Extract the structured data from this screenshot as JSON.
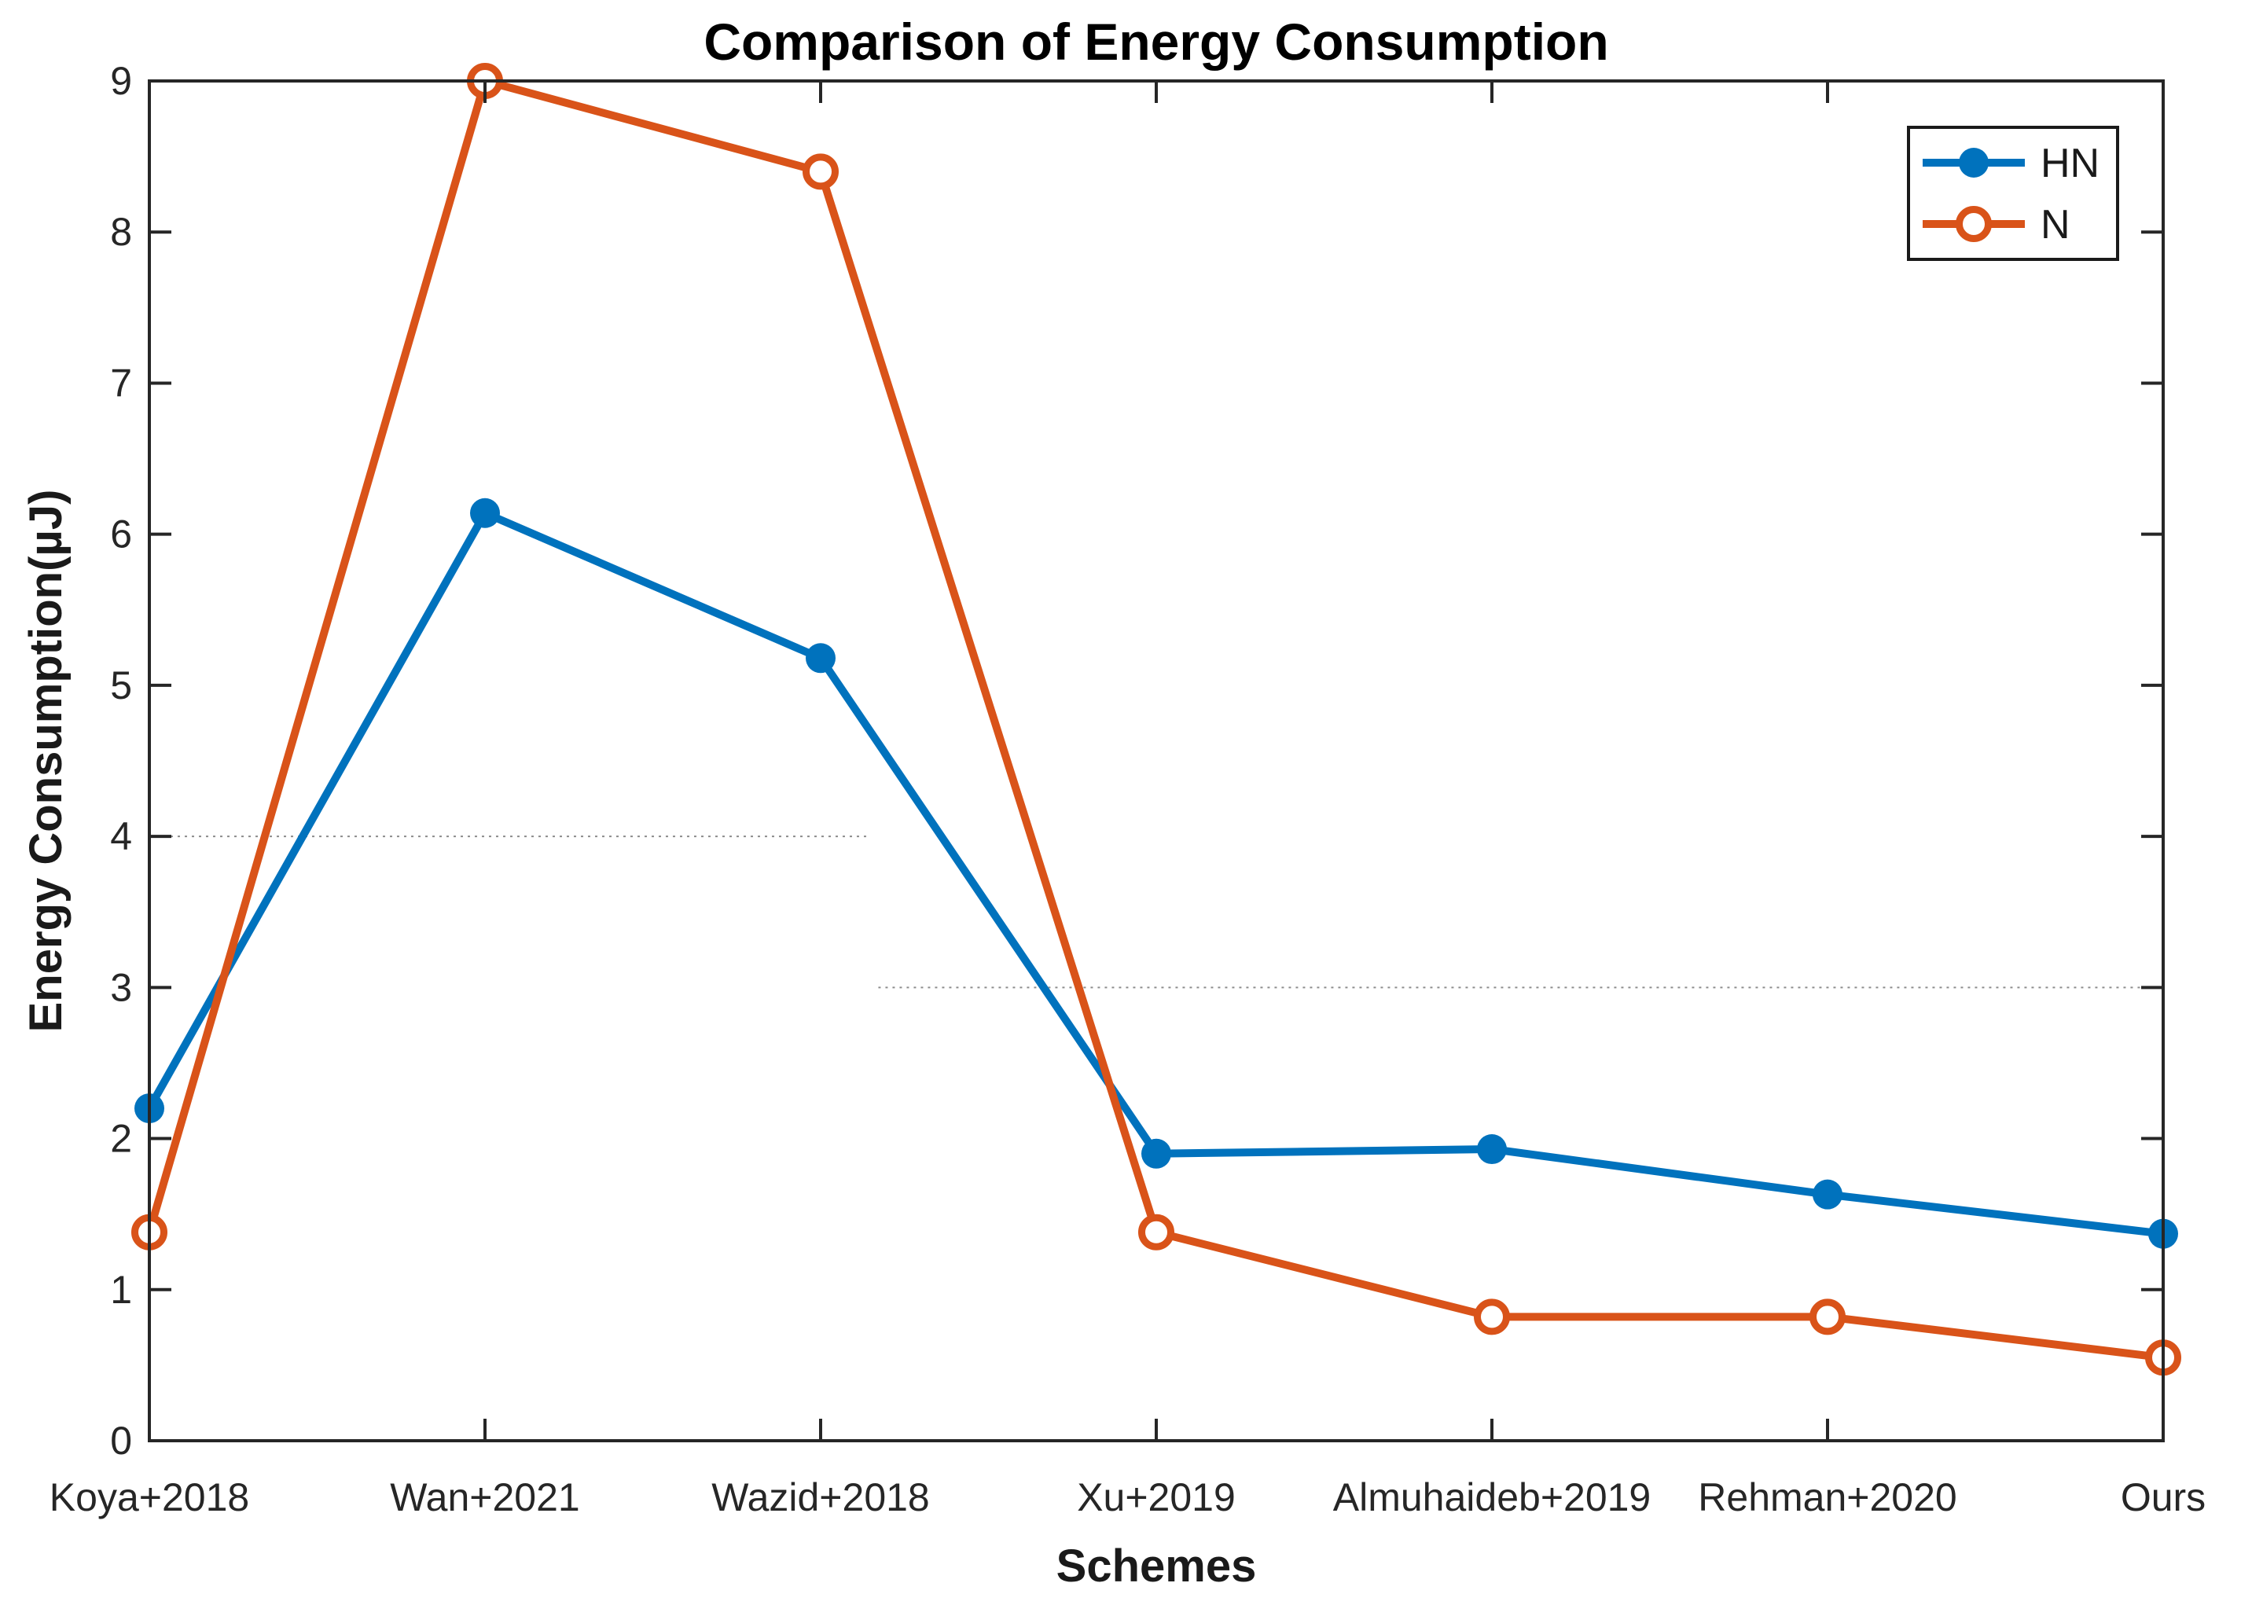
{
  "figure": {
    "background": "#ffffff"
  },
  "chart_data": {
    "type": "line",
    "title": "Comparison of Energy Consumption",
    "xlabel": "Schemes",
    "ylabel": "Energy Consumption(µJ)",
    "categories": [
      "Koya+2018",
      "Wan+2021",
      "Wazid+2018",
      "Xu+2019",
      "Almuhaideb+2019",
      "Rehman+2020",
      "Ours"
    ],
    "series": [
      {
        "name": "HN",
        "color": "#0072BD",
        "marker": "filled-circle",
        "values": [
          2.2,
          6.14,
          5.18,
          1.9,
          1.93,
          1.63,
          1.37
        ]
      },
      {
        "name": "N",
        "color": "#D95319",
        "marker": "open-circle",
        "values": [
          1.38,
          9.0,
          8.4,
          1.38,
          0.82,
          0.82,
          0.55
        ]
      }
    ],
    "ylim": [
      0,
      9
    ],
    "yticks": [
      0,
      1,
      2,
      3,
      4,
      5,
      6,
      7,
      8,
      9
    ],
    "grid": "off",
    "partial_gridlines": [
      {
        "y": 4,
        "x_frac_start": 0.0,
        "x_frac_end": 0.358
      },
      {
        "y": 3,
        "x_frac_start": 0.362,
        "x_frac_end": 1.0
      }
    ],
    "legend": {
      "position": "top-right",
      "entries": [
        "HN",
        "N"
      ]
    },
    "axis_color": "#262626"
  }
}
